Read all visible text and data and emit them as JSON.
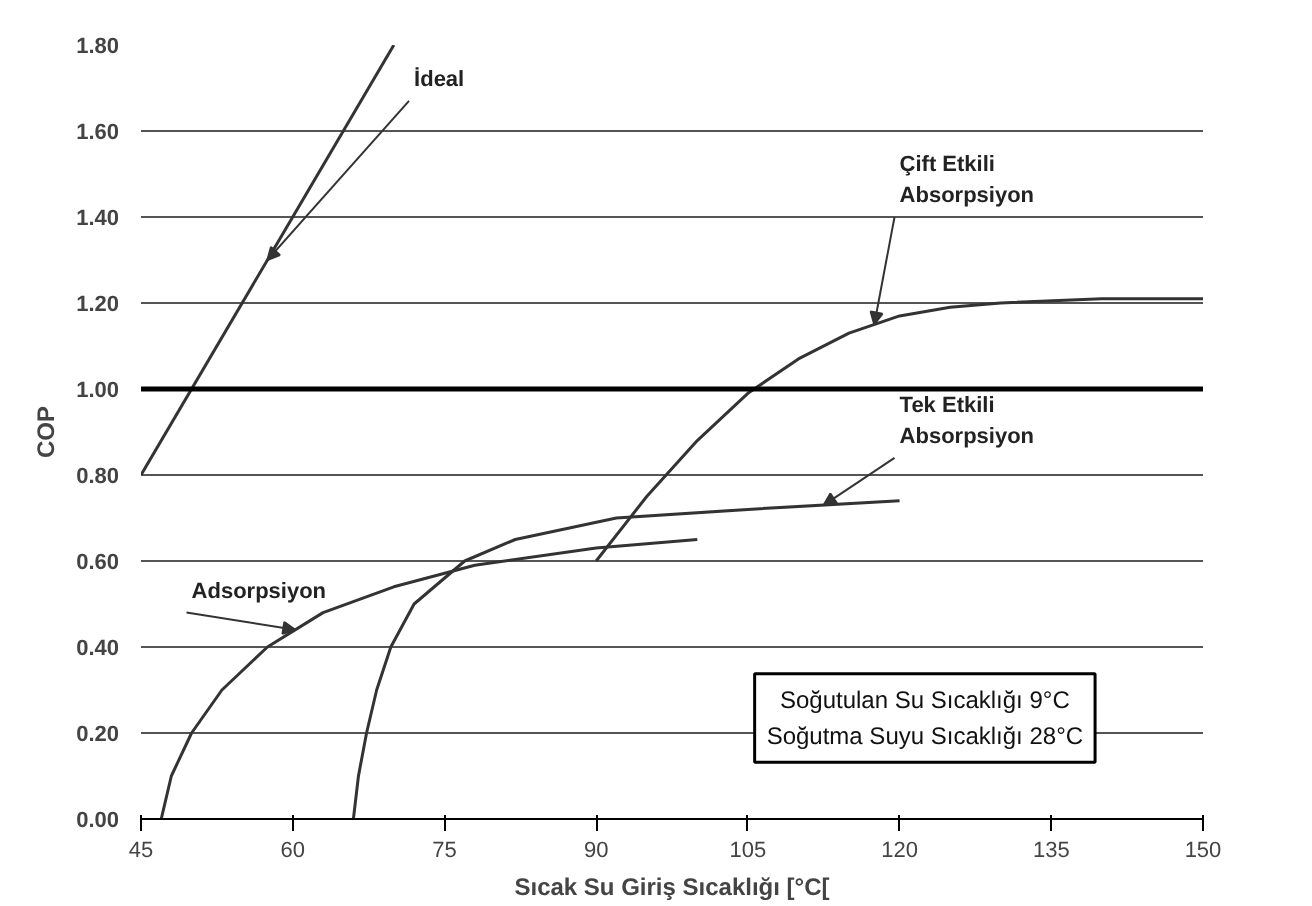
{
  "chart_data": {
    "type": "line",
    "xlabel": "Sıcak Su Giriş Sıcaklığı [°C[",
    "ylabel": "COP",
    "xlim": [
      45,
      150
    ],
    "xticks": [
      45,
      60,
      75,
      90,
      105,
      120,
      135,
      150
    ],
    "ylim": [
      0,
      1.8
    ],
    "yticks": [
      {
        "value": 0,
        "label": "0.00"
      },
      {
        "value": 0.2,
        "label": "0.20"
      },
      {
        "value": 0.4,
        "label": "0.40"
      },
      {
        "value": 0.6,
        "label": "0.60"
      },
      {
        "value": 0.8,
        "label": "0.80"
      },
      {
        "value": 1.0,
        "label": "1.00"
      },
      {
        "value": 1.2,
        "label": "1.20"
      },
      {
        "value": 1.4,
        "label": "1.40"
      },
      {
        "value": 1.6,
        "label": "1.60"
      },
      {
        "value": 1.8,
        "label": "1.80"
      }
    ],
    "grid": "y",
    "marker": "none",
    "line_style": "solid",
    "ref_lines": [
      {
        "axis": "y",
        "value": 1.0,
        "color": "#000000"
      }
    ],
    "series": [
      {
        "name": "İdeal",
        "color": "#333333",
        "x": [
          45,
          70
        ],
        "values": [
          0.8,
          1.8
        ]
      },
      {
        "name": "Çift Etkili Absorpsiyon",
        "color": "#333333",
        "x": [
          90,
          95,
          100,
          105,
          110,
          115,
          120,
          125,
          130,
          140,
          150
        ],
        "values": [
          0.6,
          0.75,
          0.88,
          0.99,
          1.07,
          1.13,
          1.17,
          1.19,
          1.2,
          1.21,
          1.21
        ]
      },
      {
        "name": "Tek Etkili Absorpsiyon",
        "color": "#333333",
        "x": [
          66,
          66.5,
          67.3,
          68.3,
          69.7,
          72,
          77,
          82,
          92,
          105,
          120
        ],
        "values": [
          0,
          0.1,
          0.2,
          0.3,
          0.4,
          0.5,
          0.6,
          0.65,
          0.7,
          0.72,
          0.74
        ]
      },
      {
        "name": "Adsorpsiyon",
        "color": "#333333",
        "x": [
          47,
          48,
          50,
          53,
          57.5,
          63,
          70,
          78,
          90,
          100
        ],
        "values": [
          0,
          0.1,
          0.2,
          0.3,
          0.4,
          0.48,
          0.54,
          0.59,
          0.63,
          0.65
        ]
      }
    ],
    "annotations": [
      "Soğutulan Su Sıcaklığı 9°C",
      "Soğutma Suyu Sıcaklığı 28°C"
    ]
  }
}
